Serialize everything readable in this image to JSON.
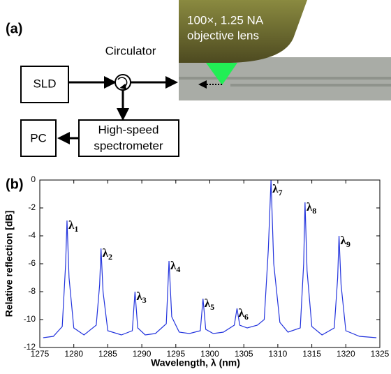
{
  "panel_a": {
    "label": "(a)",
    "sld": "SLD",
    "circulator": "Circulator",
    "pc": "PC",
    "spectrometer": [
      "High-speed",
      "spectrometer"
    ],
    "objective": [
      "100×, 1.25 NA",
      "objective lens"
    ]
  },
  "chart_data": {
    "type": "line",
    "panel_label": "(b)",
    "x_label": "Wavelength, λ (nm)",
    "y_label": "Relative reflection [dB]",
    "xlim": [
      1275,
      1325
    ],
    "xticks": [
      1275,
      1280,
      1285,
      1290,
      1295,
      1300,
      1305,
      1310,
      1315,
      1320,
      1325
    ],
    "ylim": [
      -12,
      0
    ],
    "yticks": [
      0,
      -2,
      -4,
      -6,
      -8,
      -10,
      -12
    ],
    "annotations": [
      "λ1",
      "λ2",
      "λ3",
      "λ4",
      "λ5",
      "λ6",
      "λ7",
      "λ8",
      "λ9"
    ],
    "series": [
      {
        "color": "#2233dd",
        "x": [
          1275.5,
          1277,
          1278.3,
          1278.8,
          1279,
          1279.3,
          1280,
          1281.5,
          1283.3,
          1283.8,
          1284,
          1284.3,
          1285,
          1287,
          1288.6,
          1289,
          1289.4,
          1290.5,
          1292,
          1293.6,
          1294,
          1294.4,
          1295.5,
          1297,
          1298.6,
          1299,
          1299.4,
          1300.5,
          1302,
          1303.6,
          1304,
          1304.4,
          1305.5,
          1307,
          1308,
          1308.6,
          1309,
          1309.4,
          1310.3,
          1311.5,
          1313.3,
          1313.8,
          1314,
          1314.3,
          1315,
          1316.5,
          1318.3,
          1318.8,
          1319,
          1319.3,
          1320,
          1322,
          1324.5
        ],
        "values": [
          -11.3,
          -11.2,
          -10.5,
          -6,
          -2.9,
          -7,
          -10.6,
          -11.1,
          -10.4,
          -7.5,
          -4.9,
          -8,
          -10.8,
          -11.1,
          -10.8,
          -8,
          -10.6,
          -11.1,
          -11.0,
          -10.3,
          -5.8,
          -9.8,
          -10.9,
          -11.0,
          -10.8,
          -8.5,
          -10.7,
          -11.0,
          -10.9,
          -10.4,
          -9.2,
          -10.4,
          -10.6,
          -10.4,
          -10.0,
          -5,
          0,
          -6,
          -10.2,
          -10.9,
          -10.6,
          -6,
          -1.6,
          -6.5,
          -10.5,
          -11.1,
          -10.6,
          -7,
          -4.0,
          -7.5,
          -10.8,
          -11.2,
          -11.3
        ]
      }
    ]
  }
}
